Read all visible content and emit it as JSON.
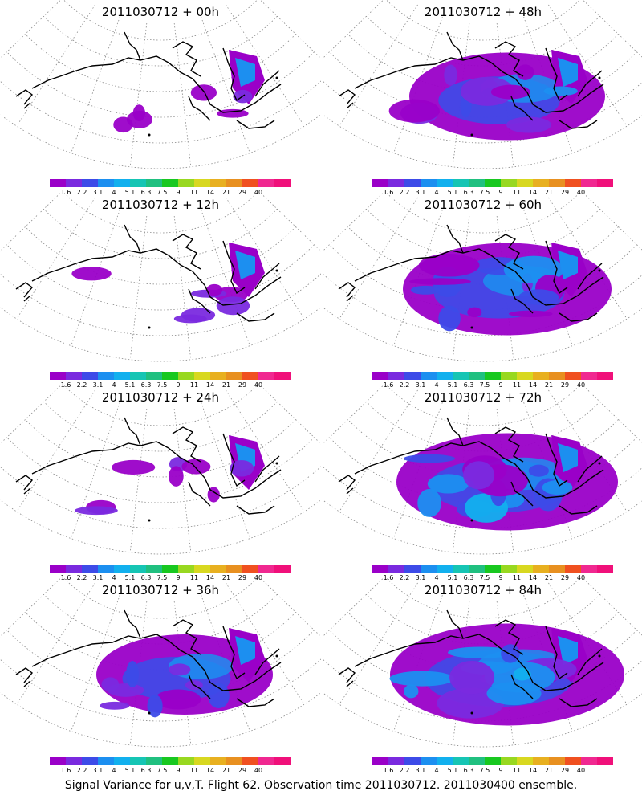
{
  "figure": {
    "caption": "Signal Variance for u,v,T. Flight 62. Observation time 2011030712. 2011030400 ensemble."
  },
  "chart_data": [
    {
      "type": "heatmap",
      "title": "2011030712 + 00h",
      "lead_time_hours": 0,
      "spread": 0.2
    },
    {
      "type": "heatmap",
      "title": "2011030712 + 48h",
      "lead_time_hours": 48,
      "spread": 0.65
    },
    {
      "type": "heatmap",
      "title": "2011030712 + 12h",
      "lead_time_hours": 12,
      "spread": 0.3
    },
    {
      "type": "heatmap",
      "title": "2011030712 + 60h",
      "lead_time_hours": 60,
      "spread": 0.75
    },
    {
      "type": "heatmap",
      "title": "2011030712 + 24h",
      "lead_time_hours": 24,
      "spread": 0.38
    },
    {
      "type": "heatmap",
      "title": "2011030712 + 72h",
      "lead_time_hours": 72,
      "spread": 0.85
    },
    {
      "type": "heatmap",
      "title": "2011030712 + 36h",
      "lead_time_hours": 36,
      "spread": 0.5
    },
    {
      "type": "heatmap",
      "title": "2011030712 + 84h",
      "lead_time_hours": 84,
      "spread": 0.95
    }
  ],
  "colorbar": {
    "labels": [
      "1.6",
      "2.2",
      "3.1",
      "4",
      "5.1",
      "6.3",
      "7.5",
      "9",
      "11",
      "14",
      "21",
      "29",
      "40"
    ],
    "colors": [
      "#9a00c8",
      "#7a2adf",
      "#3d4be8",
      "#1c8ff0",
      "#12b0ee",
      "#16c5b4",
      "#20c080",
      "#18c820",
      "#98d820",
      "#d8d820",
      "#e8b020",
      "#e89020",
      "#f05020",
      "#f02890",
      "#f0107a"
    ]
  }
}
